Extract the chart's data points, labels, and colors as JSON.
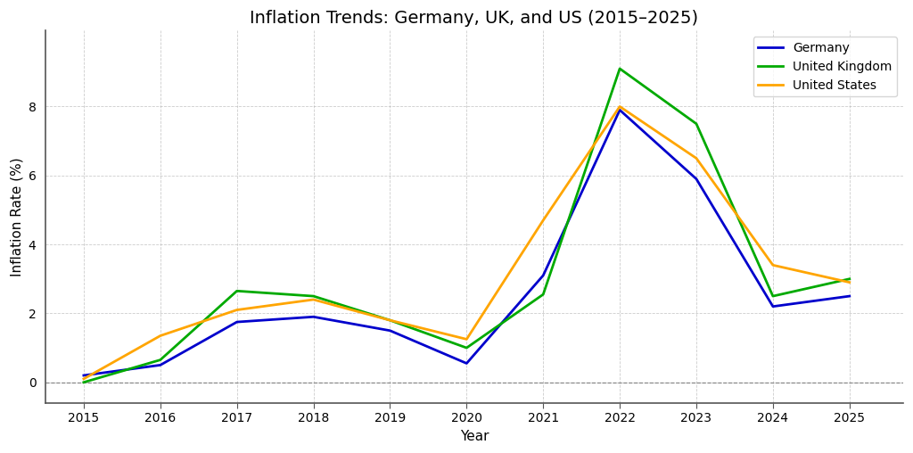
{
  "title": "Inflation Trends: Germany, UK, and US (2015–2025)",
  "xlabel": "Year",
  "ylabel": "Inflation Rate (%)",
  "years": [
    2015,
    2016,
    2017,
    2018,
    2019,
    2020,
    2021,
    2022,
    2023,
    2024,
    2025
  ],
  "germany": [
    0.2,
    0.5,
    1.75,
    1.9,
    1.5,
    0.55,
    3.1,
    7.9,
    5.9,
    2.2,
    2.5
  ],
  "uk": [
    0.0,
    0.65,
    2.65,
    2.5,
    1.8,
    1.0,
    2.55,
    9.1,
    7.5,
    2.5,
    3.0
  ],
  "us": [
    0.1,
    1.35,
    2.1,
    2.4,
    1.8,
    1.25,
    4.7,
    8.0,
    6.5,
    3.4,
    2.9
  ],
  "germany_color": "#0000cc",
  "uk_color": "#00aa00",
  "us_color": "#ffa500",
  "background_color": "#ffffff",
  "plot_bg_color": "#ffffff",
  "grid_color": "#aaaaaa",
  "line_width": 2.0,
  "ylim": [
    -0.6,
    10.2
  ],
  "yticks": [
    0,
    2,
    4,
    6,
    8
  ],
  "xlim": [
    2014.5,
    2025.7
  ],
  "legend_labels": [
    "Germany",
    "United Kingdom",
    "United States"
  ],
  "legend_loc": "upper right",
  "title_fontsize": 14,
  "axis_label_fontsize": 11,
  "tick_fontsize": 10
}
